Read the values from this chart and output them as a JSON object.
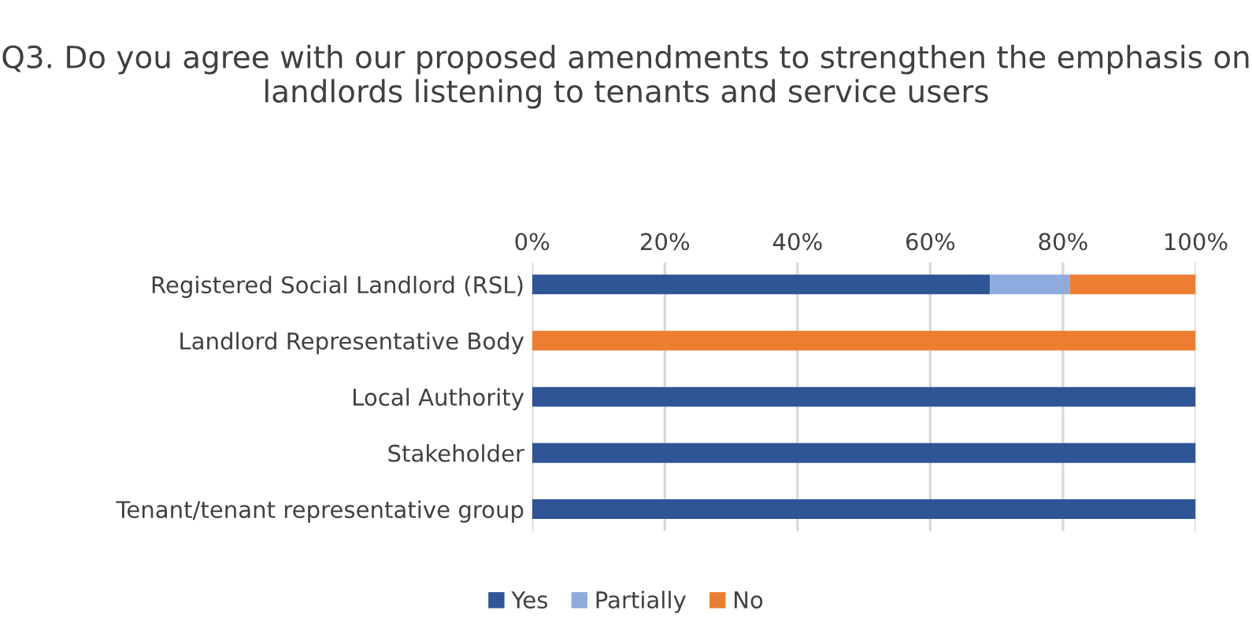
{
  "chart_data": {
    "type": "bar",
    "orientation": "horizontal",
    "stacked": true,
    "title": "Q3. Do you agree with our proposed amendments to strengthen the emphasis on landlords listening to tenants and service users",
    "categories": [
      "Registered Social Landlord (RSL)",
      "Landlord Representative Body",
      "Local Authority",
      "Stakeholder",
      "Tenant/tenant representative group"
    ],
    "series": [
      {
        "name": "Yes",
        "color": "#2f5597",
        "values": [
          69,
          0,
          100,
          100,
          100
        ]
      },
      {
        "name": "Partially",
        "color": "#8faadc",
        "values": [
          12,
          0,
          0,
          0,
          0
        ]
      },
      {
        "name": "No",
        "color": "#ed7d31",
        "values": [
          19,
          100,
          0,
          0,
          0
        ]
      }
    ],
    "xlim": [
      0,
      100
    ],
    "xticks": [
      {
        "value": 0,
        "label": "0%"
      },
      {
        "value": 20,
        "label": "20%"
      },
      {
        "value": 40,
        "label": "40%"
      },
      {
        "value": 60,
        "label": "60%"
      },
      {
        "value": 80,
        "label": "80%"
      },
      {
        "value": 100,
        "label": "100%"
      }
    ],
    "grid": "x",
    "legend": "bottom"
  }
}
